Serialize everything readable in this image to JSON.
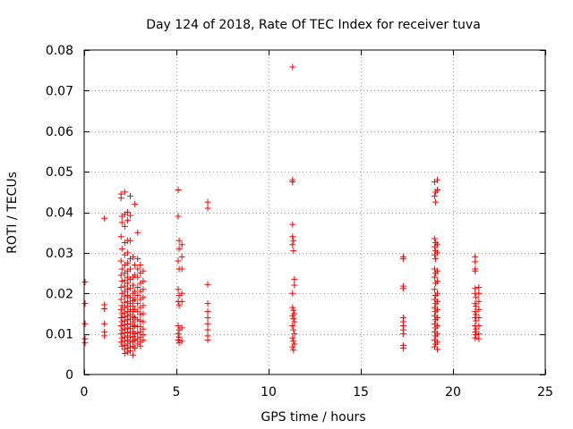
{
  "chart_data": {
    "type": "scatter",
    "title": "Day 124 of 2018, Rate Of TEC Index for receiver tuva",
    "xlabel": "GPS time / hours",
    "ylabel": "ROTI / TECUs",
    "xlim": [
      0,
      25
    ],
    "ylim": [
      0,
      0.08
    ],
    "xticks": [
      0,
      5,
      10,
      15,
      20,
      25
    ],
    "xtick_labels": [
      "0",
      "5",
      "10",
      "15",
      "20",
      "25"
    ],
    "yticks": [
      0,
      0.01,
      0.02,
      0.03,
      0.04,
      0.05,
      0.06,
      0.07,
      0.08
    ],
    "ytick_labels": [
      "0",
      "0.01",
      "0.02",
      "0.03",
      "0.04",
      "0.05",
      "0.06",
      "0.07",
      "0.08"
    ],
    "grid": true,
    "marker": "+",
    "series": [
      {
        "name": "ROTI",
        "color": "#ff0000",
        "points": [
          [
            0.05,
            0.0228
          ],
          [
            0.05,
            0.0175
          ],
          [
            0.05,
            0.0125
          ],
          [
            0.05,
            0.0088
          ],
          [
            0.05,
            0.0078
          ],
          [
            1.1,
            0.0385
          ],
          [
            1.1,
            0.0172
          ],
          [
            1.1,
            0.0162
          ],
          [
            1.1,
            0.0125
          ],
          [
            1.1,
            0.0105
          ],
          [
            1.1,
            0.0095
          ],
          [
            2.0,
            0.0445
          ],
          [
            2.0,
            0.0435
          ],
          [
            2.05,
            0.039
          ],
          [
            2.05,
            0.0375
          ],
          [
            2.0,
            0.034
          ],
          [
            2.05,
            0.031
          ],
          [
            2.0,
            0.028
          ],
          [
            2.05,
            0.026
          ],
          [
            2.0,
            0.0245
          ],
          [
            2.05,
            0.023
          ],
          [
            2.0,
            0.0215
          ],
          [
            2.05,
            0.02
          ],
          [
            2.0,
            0.0185
          ],
          [
            2.05,
            0.017
          ],
          [
            2.0,
            0.016
          ],
          [
            2.05,
            0.015
          ],
          [
            2.0,
            0.014
          ],
          [
            2.05,
            0.013
          ],
          [
            2.0,
            0.012
          ],
          [
            2.05,
            0.011
          ],
          [
            2.0,
            0.01
          ],
          [
            2.05,
            0.009
          ],
          [
            2.0,
            0.008
          ],
          [
            2.05,
            0.007
          ],
          [
            2.2,
            0.045
          ],
          [
            2.2,
            0.0395
          ],
          [
            2.2,
            0.0365
          ],
          [
            2.2,
            0.0325
          ],
          [
            2.2,
            0.0295
          ],
          [
            2.2,
            0.027
          ],
          [
            2.2,
            0.025
          ],
          [
            2.2,
            0.0232
          ],
          [
            2.2,
            0.0218
          ],
          [
            2.2,
            0.0205
          ],
          [
            2.2,
            0.0192
          ],
          [
            2.2,
            0.0178
          ],
          [
            2.2,
            0.0165
          ],
          [
            2.2,
            0.0152
          ],
          [
            2.2,
            0.0142
          ],
          [
            2.2,
            0.0132
          ],
          [
            2.2,
            0.0122
          ],
          [
            2.2,
            0.0112
          ],
          [
            2.2,
            0.0102
          ],
          [
            2.2,
            0.0092
          ],
          [
            2.2,
            0.0082
          ],
          [
            2.2,
            0.0072
          ],
          [
            2.2,
            0.0062
          ],
          [
            2.2,
            0.0052
          ],
          [
            2.35,
            0.04
          ],
          [
            2.35,
            0.038
          ],
          [
            2.35,
            0.033
          ],
          [
            2.35,
            0.03
          ],
          [
            2.35,
            0.0275
          ],
          [
            2.35,
            0.0255
          ],
          [
            2.35,
            0.024
          ],
          [
            2.35,
            0.0225
          ],
          [
            2.35,
            0.021
          ],
          [
            2.35,
            0.0195
          ],
          [
            2.35,
            0.018
          ],
          [
            2.35,
            0.0168
          ],
          [
            2.35,
            0.0155
          ],
          [
            2.35,
            0.0145
          ],
          [
            2.35,
            0.0135
          ],
          [
            2.35,
            0.0125
          ],
          [
            2.35,
            0.0115
          ],
          [
            2.35,
            0.0105
          ],
          [
            2.35,
            0.0095
          ],
          [
            2.35,
            0.0085
          ],
          [
            2.35,
            0.0075
          ],
          [
            2.35,
            0.0065
          ],
          [
            2.35,
            0.0055
          ],
          [
            2.5,
            0.044
          ],
          [
            2.5,
            0.0392
          ],
          [
            2.5,
            0.033
          ],
          [
            2.5,
            0.0285
          ],
          [
            2.5,
            0.026
          ],
          [
            2.5,
            0.0235
          ],
          [
            2.5,
            0.0212
          ],
          [
            2.5,
            0.019
          ],
          [
            2.5,
            0.0175
          ],
          [
            2.5,
            0.016
          ],
          [
            2.5,
            0.0148
          ],
          [
            2.5,
            0.0136
          ],
          [
            2.5,
            0.0124
          ],
          [
            2.5,
            0.0113
          ],
          [
            2.5,
            0.0102
          ],
          [
            2.5,
            0.0091
          ],
          [
            2.5,
            0.008
          ],
          [
            2.5,
            0.0068
          ],
          [
            2.5,
            0.0058
          ],
          [
            2.65,
            0.029
          ],
          [
            2.65,
            0.024
          ],
          [
            2.65,
            0.022
          ],
          [
            2.65,
            0.02
          ],
          [
            2.65,
            0.0182
          ],
          [
            2.65,
            0.0168
          ],
          [
            2.65,
            0.0155
          ],
          [
            2.65,
            0.0142
          ],
          [
            2.65,
            0.013
          ],
          [
            2.65,
            0.0118
          ],
          [
            2.65,
            0.0106
          ],
          [
            2.65,
            0.0094
          ],
          [
            2.65,
            0.0082
          ],
          [
            2.65,
            0.007
          ],
          [
            2.65,
            0.0048
          ],
          [
            2.75,
            0.042
          ],
          [
            2.75,
            0.027
          ],
          [
            2.75,
            0.0245
          ],
          [
            2.75,
            0.0205
          ],
          [
            2.75,
            0.0185
          ],
          [
            2.75,
            0.016
          ],
          [
            2.75,
            0.014
          ],
          [
            2.75,
            0.012
          ],
          [
            2.75,
            0.01
          ],
          [
            2.75,
            0.0085
          ],
          [
            2.75,
            0.0065
          ],
          [
            2.9,
            0.035
          ],
          [
            2.9,
            0.0285
          ],
          [
            2.9,
            0.026
          ],
          [
            2.9,
            0.024
          ],
          [
            2.9,
            0.0215
          ],
          [
            2.9,
            0.0195
          ],
          [
            2.9,
            0.0175
          ],
          [
            2.9,
            0.0155
          ],
          [
            2.9,
            0.0135
          ],
          [
            2.9,
            0.0118
          ],
          [
            2.9,
            0.0102
          ],
          [
            2.9,
            0.0088
          ],
          [
            2.9,
            0.0075
          ],
          [
            3.05,
            0.027
          ],
          [
            3.05,
            0.025
          ],
          [
            3.05,
            0.0225
          ],
          [
            3.05,
            0.0205
          ],
          [
            3.05,
            0.0185
          ],
          [
            3.05,
            0.0165
          ],
          [
            3.05,
            0.0148
          ],
          [
            3.05,
            0.0132
          ],
          [
            3.05,
            0.0118
          ],
          [
            3.05,
            0.0105
          ],
          [
            3.05,
            0.0092
          ],
          [
            3.05,
            0.008
          ],
          [
            3.05,
            0.007
          ],
          [
            3.2,
            0.0255
          ],
          [
            3.2,
            0.023
          ],
          [
            3.2,
            0.021
          ],
          [
            3.2,
            0.019
          ],
          [
            3.2,
            0.017
          ],
          [
            3.2,
            0.015
          ],
          [
            3.2,
            0.013
          ],
          [
            3.2,
            0.0112
          ],
          [
            3.2,
            0.0098
          ],
          [
            3.2,
            0.0085
          ],
          [
            5.1,
            0.0455
          ],
          [
            5.1,
            0.039
          ],
          [
            5.15,
            0.033
          ],
          [
            5.15,
            0.031
          ],
          [
            5.1,
            0.028
          ],
          [
            5.15,
            0.026
          ],
          [
            5.1,
            0.021
          ],
          [
            5.15,
            0.0195
          ],
          [
            5.1,
            0.018
          ],
          [
            5.15,
            0.017
          ],
          [
            5.1,
            0.012
          ],
          [
            5.15,
            0.011
          ],
          [
            5.1,
            0.01
          ],
          [
            5.15,
            0.0092
          ],
          [
            5.1,
            0.0085
          ],
          [
            5.15,
            0.0078
          ],
          [
            5.3,
            0.032
          ],
          [
            5.3,
            0.029
          ],
          [
            5.3,
            0.026
          ],
          [
            5.3,
            0.02
          ],
          [
            5.3,
            0.018
          ],
          [
            5.3,
            0.0115
          ],
          [
            5.3,
            0.0082
          ],
          [
            6.7,
            0.0425
          ],
          [
            6.7,
            0.041
          ],
          [
            6.7,
            0.0222
          ],
          [
            6.7,
            0.0175
          ],
          [
            6.7,
            0.0155
          ],
          [
            6.7,
            0.014
          ],
          [
            6.7,
            0.0125
          ],
          [
            6.7,
            0.011
          ],
          [
            6.7,
            0.0095
          ],
          [
            6.7,
            0.0085
          ],
          [
            11.3,
            0.0758
          ],
          [
            11.3,
            0.048
          ],
          [
            11.3,
            0.0475
          ],
          [
            11.3,
            0.037
          ],
          [
            11.3,
            0.034
          ],
          [
            11.35,
            0.033
          ],
          [
            11.3,
            0.032
          ],
          [
            11.35,
            0.0305
          ],
          [
            11.4,
            0.0235
          ],
          [
            11.4,
            0.022
          ],
          [
            11.3,
            0.02
          ],
          [
            11.3,
            0.0165
          ],
          [
            11.35,
            0.0158
          ],
          [
            11.4,
            0.015
          ],
          [
            11.3,
            0.0145
          ],
          [
            11.35,
            0.0138
          ],
          [
            11.4,
            0.013
          ],
          [
            11.3,
            0.012
          ],
          [
            11.35,
            0.011
          ],
          [
            11.4,
            0.01
          ],
          [
            11.3,
            0.009
          ],
          [
            11.35,
            0.0082
          ],
          [
            11.4,
            0.0075
          ],
          [
            11.3,
            0.0068
          ],
          [
            11.35,
            0.006
          ],
          [
            17.3,
            0.029
          ],
          [
            17.3,
            0.0285
          ],
          [
            17.3,
            0.0218
          ],
          [
            17.3,
            0.0212
          ],
          [
            17.3,
            0.014
          ],
          [
            17.3,
            0.013
          ],
          [
            17.3,
            0.012
          ],
          [
            17.3,
            0.011
          ],
          [
            17.3,
            0.01
          ],
          [
            17.3,
            0.0072
          ],
          [
            17.3,
            0.0065
          ],
          [
            19.0,
            0.0475
          ],
          [
            19.05,
            0.045
          ],
          [
            19.0,
            0.044
          ],
          [
            19.05,
            0.0425
          ],
          [
            19.0,
            0.0335
          ],
          [
            19.05,
            0.0325
          ],
          [
            19.0,
            0.0315
          ],
          [
            19.05,
            0.0305
          ],
          [
            19.0,
            0.0295
          ],
          [
            19.05,
            0.0285
          ],
          [
            19.0,
            0.026
          ],
          [
            19.05,
            0.025
          ],
          [
            19.0,
            0.024
          ],
          [
            19.05,
            0.0225
          ],
          [
            19.0,
            0.021
          ],
          [
            19.05,
            0.0195
          ],
          [
            19.0,
            0.0185
          ],
          [
            19.05,
            0.0175
          ],
          [
            19.0,
            0.0165
          ],
          [
            19.05,
            0.0155
          ],
          [
            19.0,
            0.0145
          ],
          [
            19.05,
            0.0135
          ],
          [
            19.0,
            0.0125
          ],
          [
            19.05,
            0.0115
          ],
          [
            19.0,
            0.0105
          ],
          [
            19.05,
            0.0095
          ],
          [
            19.0,
            0.0085
          ],
          [
            19.05,
            0.0075
          ],
          [
            19.0,
            0.0068
          ],
          [
            19.15,
            0.048
          ],
          [
            19.15,
            0.0455
          ],
          [
            19.15,
            0.032
          ],
          [
            19.15,
            0.03
          ],
          [
            19.15,
            0.0255
          ],
          [
            19.15,
            0.023
          ],
          [
            19.15,
            0.02
          ],
          [
            19.15,
            0.018
          ],
          [
            19.15,
            0.016
          ],
          [
            19.15,
            0.014
          ],
          [
            19.15,
            0.012
          ],
          [
            19.15,
            0.01
          ],
          [
            19.15,
            0.008
          ],
          [
            19.15,
            0.0062
          ],
          [
            21.2,
            0.029
          ],
          [
            21.2,
            0.0278
          ],
          [
            21.2,
            0.026
          ],
          [
            21.2,
            0.0255
          ],
          [
            21.2,
            0.0212
          ],
          [
            21.2,
            0.02
          ],
          [
            21.25,
            0.019
          ],
          [
            21.2,
            0.0175
          ],
          [
            21.25,
            0.0168
          ],
          [
            21.2,
            0.0155
          ],
          [
            21.25,
            0.0148
          ],
          [
            21.2,
            0.014
          ],
          [
            21.25,
            0.0132
          ],
          [
            21.2,
            0.012
          ],
          [
            21.25,
            0.0112
          ],
          [
            21.2,
            0.0105
          ],
          [
            21.25,
            0.0098
          ],
          [
            21.2,
            0.009
          ],
          [
            21.4,
            0.0215
          ],
          [
            21.4,
            0.02
          ],
          [
            21.4,
            0.018
          ],
          [
            21.4,
            0.016
          ],
          [
            21.4,
            0.014
          ],
          [
            21.4,
            0.012
          ],
          [
            21.4,
            0.01
          ],
          [
            21.4,
            0.0088
          ]
        ]
      }
    ]
  }
}
